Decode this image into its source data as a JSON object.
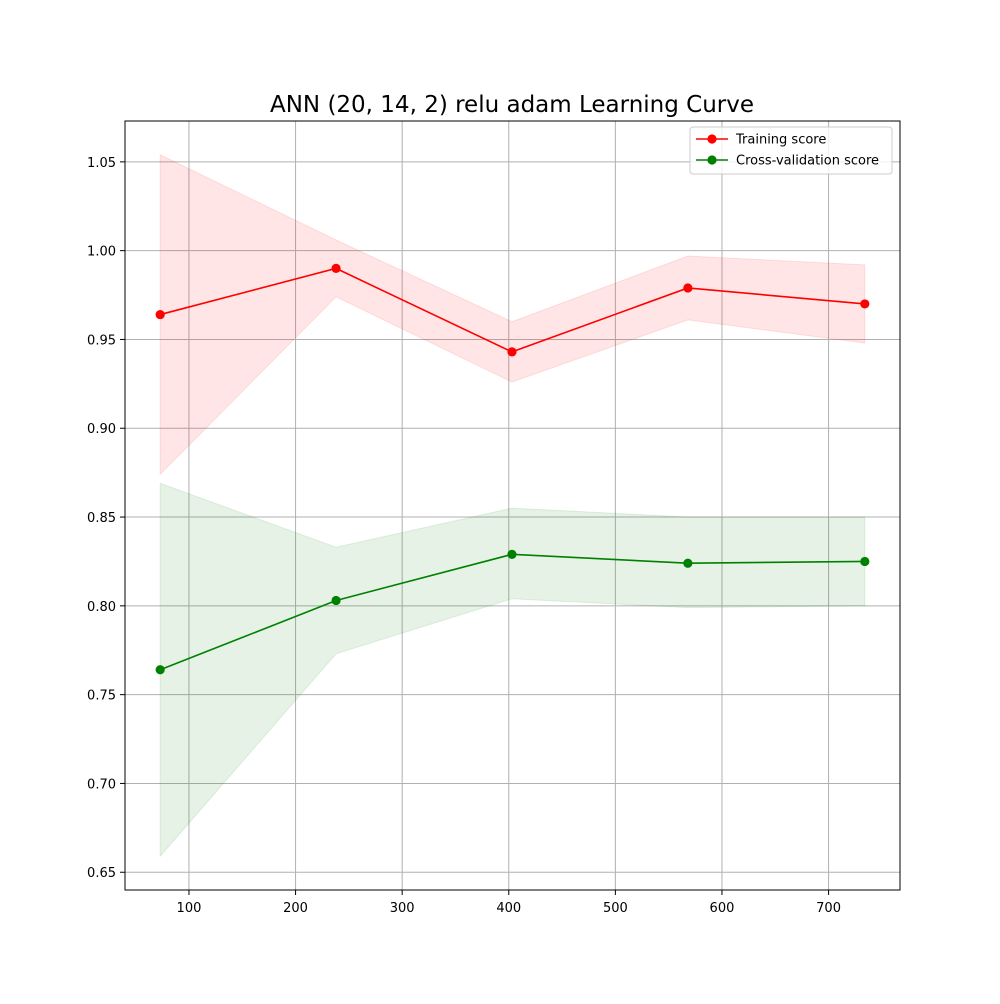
{
  "chart_data": {
    "type": "line",
    "title": "ANN (20, 14, 2) relu adam Learning Curve",
    "xlabel": "",
    "ylabel": "",
    "xlim": [
      40,
      767
    ],
    "ylim": [
      0.64,
      1.073
    ],
    "xticks": [
      100,
      200,
      300,
      400,
      500,
      600,
      700
    ],
    "yticks": [
      0.65,
      0.7,
      0.75,
      0.8,
      0.85,
      0.9,
      0.95,
      1.0,
      1.05
    ],
    "grid": true,
    "legend_position": "top-right",
    "x": [
      73,
      238,
      403,
      568,
      734
    ],
    "series": [
      {
        "name": "Training score",
        "color": "#ff0000",
        "band_color": "#ff0000",
        "values": [
          0.964,
          0.99,
          0.943,
          0.979,
          0.97
        ],
        "lower": [
          0.874,
          0.974,
          0.926,
          0.961,
          0.948
        ],
        "upper": [
          1.054,
          1.006,
          0.96,
          0.997,
          0.992
        ]
      },
      {
        "name": "Cross-validation score",
        "color": "#008000",
        "band_color": "#008000",
        "values": [
          0.764,
          0.803,
          0.829,
          0.824,
          0.825
        ],
        "lower": [
          0.659,
          0.773,
          0.804,
          0.799,
          0.8
        ],
        "upper": [
          0.869,
          0.833,
          0.855,
          0.85,
          0.85
        ]
      }
    ]
  }
}
